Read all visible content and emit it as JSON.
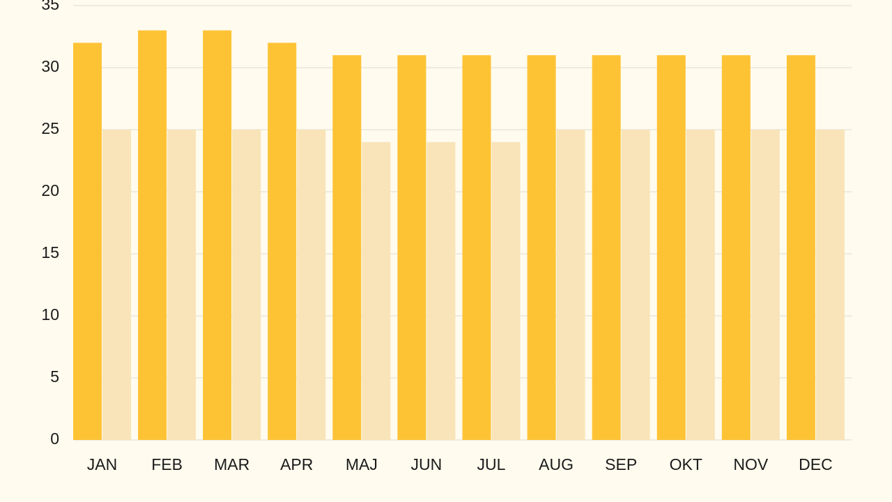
{
  "chart_data": {
    "type": "bar",
    "categories": [
      "JAN",
      "FEB",
      "MAR",
      "APR",
      "MAJ",
      "JUN",
      "JUL",
      "AUG",
      "SEP",
      "OKT",
      "NOV",
      "DEC"
    ],
    "series": [
      {
        "color": "#fec335",
        "values": [
          32,
          33,
          33,
          32,
          31,
          31,
          31,
          31,
          31,
          31,
          31,
          31
        ]
      },
      {
        "color": "#f8e4b8",
        "values": [
          25,
          25,
          25,
          25,
          24,
          24,
          24,
          25,
          25,
          25,
          25,
          25
        ]
      }
    ],
    "ylim": [
      0,
      35
    ],
    "yticks": [
      0,
      5,
      10,
      15,
      20,
      25,
      30,
      35
    ],
    "grid": true
  }
}
